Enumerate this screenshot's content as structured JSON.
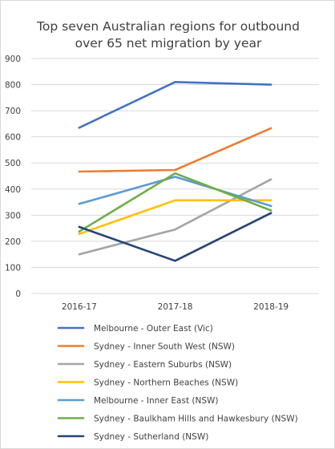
{
  "chart_data": {
    "type": "line",
    "title": "Top seven Australian regions for outbound over 65 net migration by year",
    "title_lines": [
      "Top seven Australian regions for outbound",
      "over 65 net migration by year"
    ],
    "xlabel": "",
    "ylabel": "",
    "categories": [
      "2016-17",
      "2017-18",
      "2018-19"
    ],
    "ylim": [
      0,
      900
    ],
    "yticks": [
      0,
      100,
      200,
      300,
      400,
      500,
      600,
      700,
      800,
      900
    ],
    "grid": true,
    "legend_position": "bottom",
    "series": [
      {
        "name": "Melbourne - Outer East (Vic)",
        "values": [
          635,
          810,
          800
        ],
        "color": "#4472c4"
      },
      {
        "name": "Sydney - Inner South West (NSW)",
        "values": [
          467,
          473,
          633
        ],
        "color": "#ed7d31"
      },
      {
        "name": "Sydney - Eastern Suburbs (NSW)",
        "values": [
          150,
          245,
          437
        ],
        "color": "#a5a5a5"
      },
      {
        "name": "Sydney - Northern Beaches (NSW)",
        "values": [
          228,
          357,
          357
        ],
        "color": "#ffc000"
      },
      {
        "name": "Melbourne - Inner East (NSW)",
        "values": [
          343,
          447,
          335
        ],
        "color": "#5b9bd5"
      },
      {
        "name": "Sydney - Baulkham Hills and Hawkesbury (NSW)",
        "values": [
          237,
          460,
          318
        ],
        "color": "#70ad47"
      },
      {
        "name": "Sydney - Sutherland (NSW)",
        "values": [
          255,
          125,
          308
        ],
        "color": "#264478"
      }
    ]
  }
}
